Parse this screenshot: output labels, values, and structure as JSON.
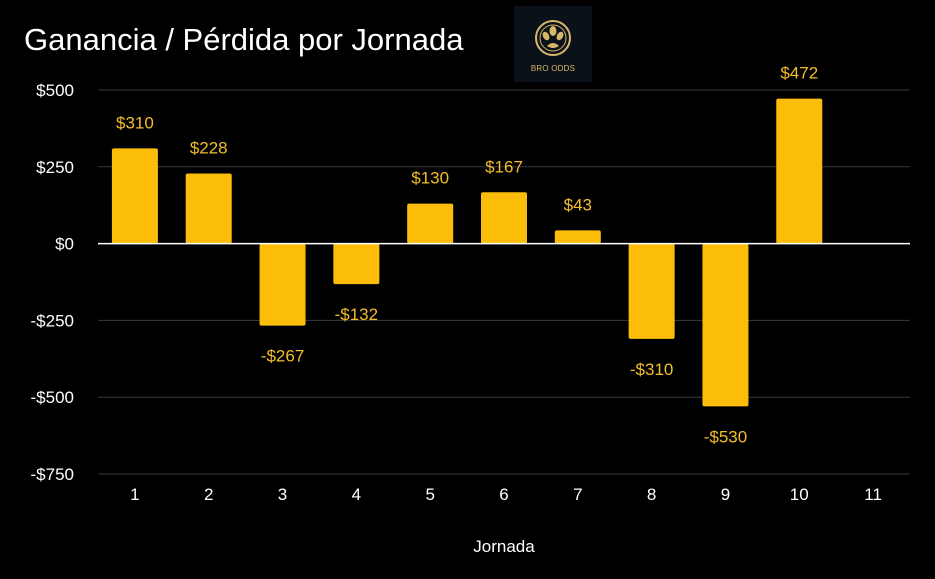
{
  "chart_data": {
    "type": "bar",
    "title": "Ganancia / Pérdida por Jornada",
    "xlabel": "Jornada",
    "ylabel": "",
    "categories": [
      "1",
      "2",
      "3",
      "4",
      "5",
      "6",
      "7",
      "8",
      "9",
      "10",
      "11"
    ],
    "values": [
      310,
      228,
      -267,
      -132,
      130,
      167,
      43,
      -310,
      -530,
      472,
      null
    ],
    "data_labels": [
      "$310",
      "$228",
      "-$267",
      "-$132",
      "$130",
      "$167",
      "$43",
      "-$310",
      "-$530",
      "$472",
      ""
    ],
    "ylim": [
      -750,
      500
    ],
    "yticks": [
      500,
      250,
      0,
      -250,
      -500,
      -750
    ],
    "ytick_labels": [
      "$500",
      "$250",
      "$0",
      "-$250",
      "-$500",
      "-$750"
    ],
    "grid": true,
    "legend": "none"
  },
  "logo": {
    "text": "BRO ODDS"
  },
  "colors": {
    "background": "#000000",
    "bar": "#fbbd0a",
    "data_label": "#f3be2b",
    "grid": "#3a3a3a",
    "zero_line": "#ffffff",
    "text": "#ffffff"
  }
}
